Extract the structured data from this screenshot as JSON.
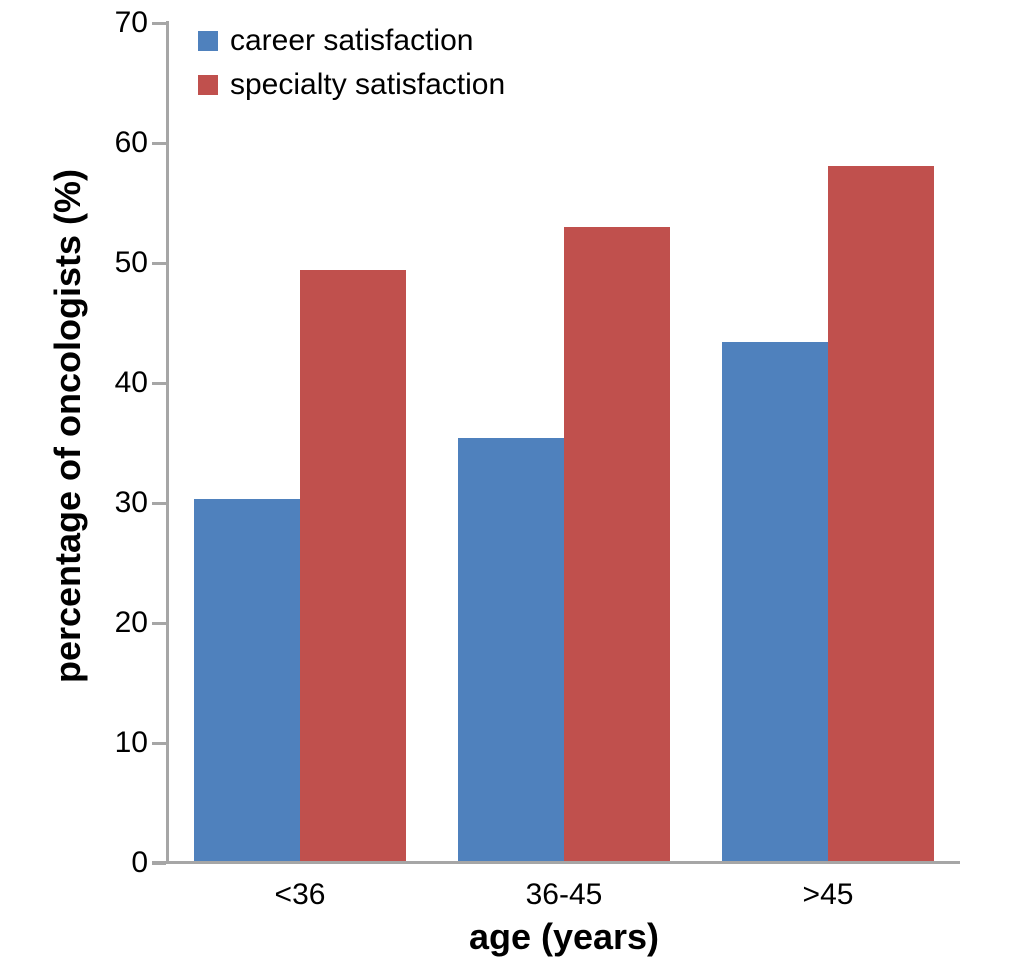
{
  "chart_data": {
    "type": "bar",
    "title": "",
    "categories": [
      "<36",
      "36-45",
      ">45"
    ],
    "series": [
      {
        "name": "career satisfaction",
        "color": "#4f81bd",
        "values": [
          30.3,
          35.4,
          43.4
        ]
      },
      {
        "name": "specialty satisfaction",
        "color": "#c0504d",
        "values": [
          49.4,
          53.0,
          58.1
        ]
      }
    ],
    "xlabel": "age (years)",
    "ylabel": "percentage of oncologists (%)",
    "ylim": [
      0,
      70
    ],
    "yticks": [
      0,
      10,
      20,
      30,
      40,
      50,
      60,
      70
    ],
    "legend_position": "top-left",
    "grid": false,
    "axis_color": "#a6a6a6",
    "text_color": "#000000"
  }
}
